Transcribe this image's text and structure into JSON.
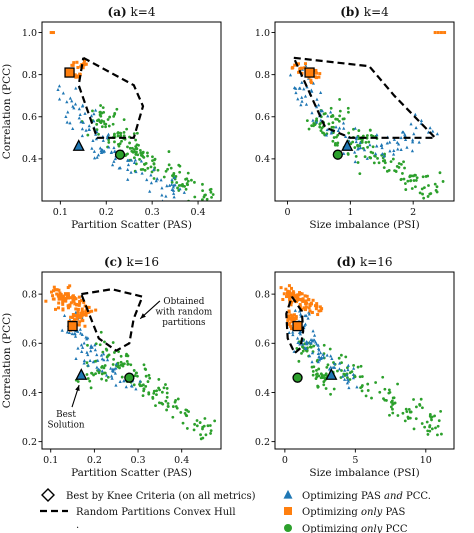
{
  "chart_data": [
    {
      "type": "scatter",
      "title_label": "(a)",
      "title_text": "k=4",
      "xlabel": "Partition Scatter (PAS)",
      "ylabel": "Correlation (PCC)",
      "xlim": [
        0.06,
        0.45
      ],
      "ylim": [
        0.2,
        1.05
      ],
      "xticks": [
        0.1,
        0.2,
        0.3,
        0.4
      ],
      "yticks": [
        0.4,
        0.6,
        0.8,
        1.0
      ],
      "xtick_labels": [
        "0.1",
        "0.2",
        "0.3",
        "0.4"
      ],
      "ytick_labels": [
        "0.4",
        "0.6",
        "0.8",
        "1.0"
      ],
      "series": [
        {
          "key": "pcc_only",
          "marker": "circle",
          "color": "#2ca02c",
          "cloud": [
            [
              0.18,
              0.58
            ],
            [
              0.22,
              0.52
            ],
            [
              0.26,
              0.44
            ],
            [
              0.3,
              0.38
            ],
            [
              0.34,
              0.33
            ],
            [
              0.38,
              0.28
            ],
            [
              0.41,
              0.22
            ],
            [
              0.2,
              0.6
            ],
            [
              0.24,
              0.48
            ],
            [
              0.28,
              0.4
            ]
          ],
          "spread": [
            0.03,
            0.05
          ],
          "n": 170
        },
        {
          "key": "pas_pcc",
          "marker": "triangle",
          "color": "#1f77b4",
          "cloud": [
            [
              0.12,
              0.7
            ],
            [
              0.14,
              0.62
            ],
            [
              0.16,
              0.55
            ],
            [
              0.18,
              0.5
            ],
            [
              0.2,
              0.45
            ],
            [
              0.22,
              0.4
            ],
            [
              0.26,
              0.36
            ],
            [
              0.3,
              0.3
            ],
            [
              0.35,
              0.25
            ]
          ],
          "spread": [
            0.025,
            0.05
          ],
          "n": 110
        },
        {
          "key": "pas_only",
          "marker": "square",
          "color": "#ff7f0e",
          "cloud": [
            [
              0.13,
              0.84
            ],
            [
              0.14,
              0.8
            ],
            [
              0.15,
              0.86
            ]
          ],
          "spread": [
            0.012,
            0.03
          ],
          "n": 22,
          "extra": [
            [
              0.08,
              1.0
            ],
            [
              0.085,
              1.0
            ]
          ]
        }
      ],
      "hull": [
        [
          0.15,
          0.88
        ],
        [
          0.26,
          0.75
        ],
        [
          0.28,
          0.65
        ],
        [
          0.26,
          0.5
        ],
        [
          0.18,
          0.5
        ],
        [
          0.14,
          0.75
        ],
        [
          0.15,
          0.88
        ]
      ],
      "best": [
        {
          "key": "pas_pcc",
          "x": 0.14,
          "y": 0.46
        },
        {
          "key": "pas_only",
          "x": 0.12,
          "y": 0.81
        },
        {
          "key": "pcc_only",
          "x": 0.23,
          "y": 0.42
        }
      ]
    },
    {
      "type": "scatter",
      "title_label": "(b)",
      "title_text": "k=4",
      "xlabel": "Size imbalance (PSI)",
      "ylabel": "",
      "xlim": [
        -0.2,
        2.65
      ],
      "ylim": [
        0.2,
        1.05
      ],
      "xticks": [
        0,
        1,
        2
      ],
      "yticks": [
        0.4,
        0.6,
        0.8,
        1.0
      ],
      "xtick_labels": [
        "0",
        "1",
        "2"
      ],
      "ytick_labels": [
        "0.4",
        "0.6",
        "0.8",
        "1.0"
      ],
      "series": [
        {
          "key": "pcc_only",
          "marker": "circle",
          "color": "#2ca02c",
          "cloud": [
            [
              0.5,
              0.55
            ],
            [
              0.8,
              0.5
            ],
            [
              1.1,
              0.45
            ],
            [
              1.4,
              0.4
            ],
            [
              1.7,
              0.35
            ],
            [
              2.0,
              0.3
            ],
            [
              2.3,
              0.25
            ],
            [
              0.7,
              0.6
            ],
            [
              1.2,
              0.5
            ]
          ],
          "spread": [
            0.2,
            0.05
          ],
          "n": 170
        },
        {
          "key": "pas_pcc",
          "marker": "triangle",
          "color": "#1f77b4",
          "cloud": [
            [
              0.2,
              0.7
            ],
            [
              0.5,
              0.62
            ],
            [
              0.8,
              0.55
            ],
            [
              1.1,
              0.48
            ],
            [
              1.5,
              0.45
            ],
            [
              1.9,
              0.5
            ],
            [
              2.2,
              0.55
            ],
            [
              0.3,
              0.78
            ]
          ],
          "spread": [
            0.22,
            0.06
          ],
          "n": 110
        },
        {
          "key": "pas_only",
          "marker": "square",
          "color": "#ff7f0e",
          "cloud": [
            [
              0.12,
              0.84
            ],
            [
              0.25,
              0.82
            ],
            [
              0.4,
              0.8
            ]
          ],
          "spread": [
            0.1,
            0.025
          ],
          "n": 30,
          "extra": [
            [
              2.35,
              1.0
            ],
            [
              2.4,
              1.0
            ],
            [
              2.45,
              1.0
            ],
            [
              2.5,
              1.0
            ]
          ]
        }
      ],
      "hull": [
        [
          0.1,
          0.88
        ],
        [
          1.3,
          0.84
        ],
        [
          1.7,
          0.7
        ],
        [
          2.35,
          0.5
        ],
        [
          1.0,
          0.5
        ],
        [
          0.6,
          0.55
        ],
        [
          0.1,
          0.88
        ]
      ],
      "best": [
        {
          "key": "pas_pcc",
          "x": 0.95,
          "y": 0.46
        },
        {
          "key": "pas_only",
          "x": 0.35,
          "y": 0.81
        },
        {
          "key": "pcc_only",
          "x": 0.8,
          "y": 0.42
        }
      ]
    },
    {
      "type": "scatter",
      "title_label": "(c)",
      "title_text": "k=16",
      "xlabel": "Partition Scatter (PAS)",
      "ylabel": "Correlation (PCC)",
      "xlim": [
        0.08,
        0.49
      ],
      "ylim": [
        0.17,
        0.89
      ],
      "xticks": [
        0.1,
        0.2,
        0.3,
        0.4
      ],
      "yticks": [
        0.2,
        0.4,
        0.6,
        0.8
      ],
      "xtick_labels": [
        "0.1",
        "0.2",
        "0.3",
        "0.4"
      ],
      "ytick_labels": [
        "0.2",
        "0.4",
        "0.6",
        "0.8"
      ],
      "series": [
        {
          "key": "pcc_only",
          "marker": "circle",
          "color": "#2ca02c",
          "cloud": [
            [
              0.22,
              0.58
            ],
            [
              0.26,
              0.52
            ],
            [
              0.3,
              0.45
            ],
            [
              0.34,
              0.4
            ],
            [
              0.38,
              0.35
            ],
            [
              0.42,
              0.3
            ],
            [
              0.45,
              0.25
            ],
            [
              0.2,
              0.48
            ]
          ],
          "spread": [
            0.03,
            0.05
          ],
          "n": 150
        },
        {
          "key": "pas_pcc",
          "marker": "triangle",
          "color": "#1f77b4",
          "cloud": [
            [
              0.15,
              0.65
            ],
            [
              0.18,
              0.58
            ],
            [
              0.2,
              0.52
            ],
            [
              0.24,
              0.48
            ],
            [
              0.28,
              0.44
            ],
            [
              0.16,
              0.7
            ]
          ],
          "spread": [
            0.025,
            0.04
          ],
          "n": 80
        },
        {
          "key": "pas_only",
          "marker": "square",
          "color": "#ff7f0e",
          "cloud": [
            [
              0.12,
              0.8
            ],
            [
              0.15,
              0.76
            ],
            [
              0.18,
              0.73
            ],
            [
              0.16,
              0.7
            ],
            [
              0.13,
              0.78
            ]
          ],
          "spread": [
            0.02,
            0.03
          ],
          "n": 110
        }
      ],
      "hull": [
        [
          0.17,
          0.8
        ],
        [
          0.24,
          0.82
        ],
        [
          0.31,
          0.79
        ],
        [
          0.29,
          0.7
        ],
        [
          0.28,
          0.6
        ],
        [
          0.25,
          0.57
        ],
        [
          0.21,
          0.62
        ],
        [
          0.17,
          0.8
        ]
      ],
      "best": [
        {
          "key": "pas_only",
          "x": 0.15,
          "y": 0.67
        },
        {
          "key": "pas_pcc",
          "x": 0.17,
          "y": 0.47
        },
        {
          "key": "pcc_only",
          "x": 0.28,
          "y": 0.46
        }
      ],
      "annotations": [
        {
          "lines": [
            "Obtained",
            "with random",
            "partitions"
          ],
          "x": 0.405,
          "y": 0.76,
          "ax": 0.305,
          "ay": 0.7
        },
        {
          "lines": [
            "Best",
            "Solution"
          ],
          "x": 0.135,
          "y": 0.3,
          "ax": 0.165,
          "ay": 0.43
        }
      ]
    },
    {
      "type": "scatter",
      "title_label": "(d)",
      "title_text": "k=16",
      "xlabel": "Size imbalance (PSI)",
      "ylabel": "",
      "xlim": [
        -0.7,
        12.0
      ],
      "ylim": [
        0.17,
        0.89
      ],
      "xticks": [
        0,
        5,
        10
      ],
      "yticks": [
        0.2,
        0.4,
        0.6,
        0.8
      ],
      "xtick_labels": [
        "0",
        "5",
        "10"
      ],
      "ytick_labels": [
        "0.2",
        "0.4",
        "0.6",
        "0.8"
      ],
      "series": [
        {
          "key": "pcc_only",
          "marker": "circle",
          "color": "#2ca02c",
          "cloud": [
            [
              1.5,
              0.58
            ],
            [
              3,
              0.52
            ],
            [
              4.5,
              0.47
            ],
            [
              6,
              0.42
            ],
            [
              7.5,
              0.37
            ],
            [
              9,
              0.32
            ],
            [
              10.5,
              0.28
            ],
            [
              2.5,
              0.45
            ]
          ],
          "spread": [
            0.8,
            0.05
          ],
          "n": 160
        },
        {
          "key": "pas_pcc",
          "marker": "triangle",
          "color": "#1f77b4",
          "cloud": [
            [
              0.8,
              0.65
            ],
            [
              1.5,
              0.6
            ],
            [
              2.5,
              0.55
            ],
            [
              3.5,
              0.5
            ],
            [
              4.5,
              0.47
            ],
            [
              1.2,
              0.7
            ]
          ],
          "spread": [
            0.6,
            0.04
          ],
          "n": 90
        },
        {
          "key": "pas_only",
          "marker": "square",
          "color": "#ff7f0e",
          "cloud": [
            [
              0.3,
              0.8
            ],
            [
              0.8,
              0.78
            ],
            [
              1.5,
              0.76
            ],
            [
              2.2,
              0.74
            ],
            [
              0.5,
              0.7
            ]
          ],
          "spread": [
            0.4,
            0.03
          ],
          "n": 120
        }
      ],
      "hull": [
        [
          0.5,
          0.79
        ],
        [
          1.2,
          0.73
        ],
        [
          1.3,
          0.65
        ],
        [
          1.1,
          0.58
        ],
        [
          0.7,
          0.56
        ],
        [
          0.2,
          0.62
        ],
        [
          0.1,
          0.72
        ],
        [
          0.5,
          0.79
        ]
      ],
      "best": [
        {
          "key": "pas_only",
          "x": 0.9,
          "y": 0.67
        },
        {
          "key": "pas_pcc",
          "x": 3.3,
          "y": 0.47
        },
        {
          "key": "pcc_only",
          "x": 0.9,
          "y": 0.46
        }
      ]
    }
  ],
  "legend": {
    "items": [
      {
        "key": "knee",
        "label": "Best by Knee Criteria (on all metrics)"
      },
      {
        "key": "hull",
        "label": "Random Partitions Convex Hull"
      },
      {
        "key": "dot",
        "label": "."
      },
      {
        "key": "pas_pcc",
        "label_parts": [
          "Optimizing PAS ",
          "and",
          " PCC."
        ],
        "color": "#1f77b4"
      },
      {
        "key": "pas_only",
        "label_parts": [
          "Optimizing ",
          "only",
          " PAS"
        ],
        "color": "#ff7f0e"
      },
      {
        "key": "pcc_only",
        "label_parts": [
          "Optimizing ",
          "only",
          " PCC"
        ],
        "color": "#2ca02c"
      }
    ]
  },
  "colors": {
    "blue": "#1f77b4",
    "orange": "#ff7f0e",
    "green": "#2ca02c"
  }
}
